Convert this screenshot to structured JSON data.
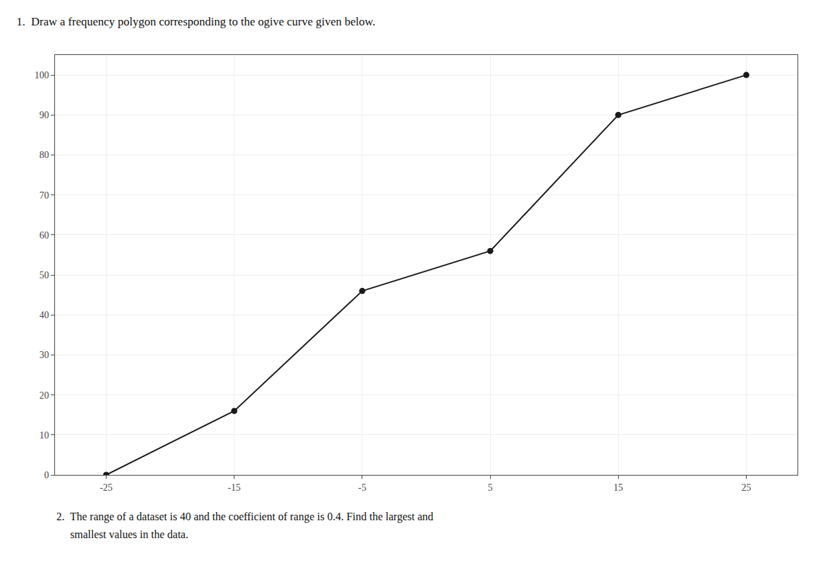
{
  "chart_data": {
    "type": "line",
    "title": "1.  Draw a frequency polygon corresponding to the ogive curve given below.",
    "annotations": [
      "2.  The range of a dataset is 40 and the coefficient of range is 0.4. Find the largest and",
      "     smallest values in the data."
    ],
    "x": [
      -25,
      -15,
      -5,
      5,
      15,
      25
    ],
    "values": [
      0,
      16,
      46,
      56,
      90,
      100
    ],
    "color": "#1a1a1a",
    "marker": "circle",
    "xlim": [
      -29,
      29
    ],
    "ylim": [
      0,
      105
    ],
    "xticks": [
      -25,
      -15,
      -5,
      5,
      15,
      25
    ],
    "yticks": [
      0,
      10,
      20,
      30,
      40,
      50,
      60,
      70,
      80,
      90,
      100
    ],
    "grid": true
  }
}
